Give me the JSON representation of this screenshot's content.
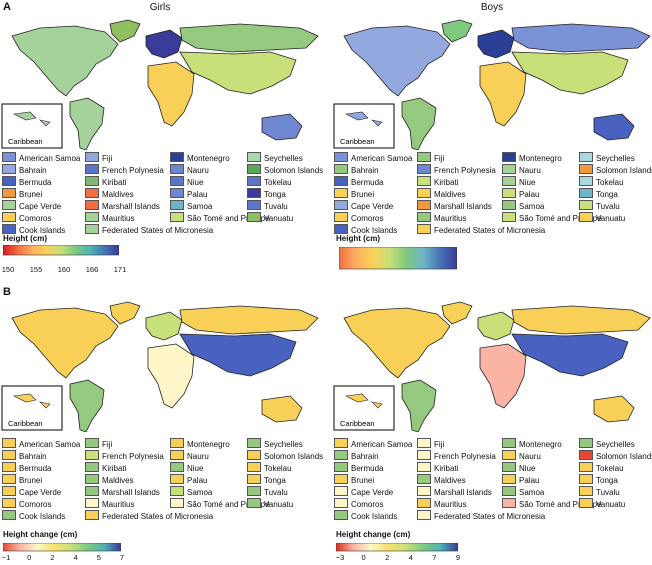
{
  "panels": {
    "A": {
      "letter": "A",
      "left_title": "Girls",
      "right_title": "Boys"
    },
    "B": {
      "letter": "B"
    }
  },
  "inset_label": "Caribbean",
  "colorbars": {
    "girls_height": {
      "title": "Height (cm)",
      "ticks": [
        "150",
        "155",
        "160",
        "166",
        "171"
      ],
      "colors": [
        "#d7191c",
        "#f46d43",
        "#fdae61",
        "#f9d057",
        "#c7e07a",
        "#7fc97f",
        "#4eb3b3",
        "#4575b4",
        "#3a3a9a"
      ]
    },
    "boys_height": {
      "title": "Height (cm)",
      "colors": [
        "#f46d43",
        "#fdae61",
        "#f9d057",
        "#c7e07a",
        "#7fc97f",
        "#6fb4c8",
        "#4575b4",
        "#3a3a9a"
      ]
    },
    "girls_change": {
      "title": "Height change (cm)",
      "ticks": [
        "−1",
        "0",
        "2",
        "4",
        "5",
        "7"
      ],
      "colors": [
        "#e34a33",
        "#fbb4a4",
        "#fef6c8",
        "#f7e36b",
        "#c7e07a",
        "#7fc97f",
        "#4eb3b3",
        "#3a3a9a"
      ]
    },
    "boys_change": {
      "title": "Height change (cm)",
      "ticks": [
        "−3",
        "0",
        "2",
        "4",
        "7",
        "9"
      ],
      "colors": [
        "#d7301f",
        "#fbb4a4",
        "#fef6c8",
        "#f7e36b",
        "#c7e07a",
        "#7fc97f",
        "#4eb3b3",
        "#3a3a9a"
      ]
    }
  },
  "legends": {
    "A_girls": [
      {
        "name": "American Samoa",
        "color": "#7b93d6"
      },
      {
        "name": "Fiji",
        "color": "#94a8e0"
      },
      {
        "name": "Montenegro",
        "color": "#2b3f97"
      },
      {
        "name": "Seychelles",
        "color": "#a9d8b0"
      },
      {
        "name": "Bahrain",
        "color": "#94a8e0"
      },
      {
        "name": "French Polynesia",
        "color": "#5d74c7"
      },
      {
        "name": "Nauru",
        "color": "#6f86d0"
      },
      {
        "name": "Solomon Islands",
        "color": "#5ba85a"
      },
      {
        "name": "Bermuda",
        "color": "#4a62bf"
      },
      {
        "name": "Kiribati",
        "color": "#7fb873"
      },
      {
        "name": "Niue",
        "color": "#5d74c7"
      },
      {
        "name": "Tokelau",
        "color": "#5d74c7"
      },
      {
        "name": "Brunei",
        "color": "#f09a3e"
      },
      {
        "name": "Maldives",
        "color": "#f46d43"
      },
      {
        "name": "Palau",
        "color": "#6f86d0"
      },
      {
        "name": "Tonga",
        "color": "#3a3a9a"
      },
      {
        "name": "Cape Verde",
        "color": "#a5d29a"
      },
      {
        "name": "Marshall Islands",
        "color": "#f46d43"
      },
      {
        "name": "Samoa",
        "color": "#6fb4c8"
      },
      {
        "name": "Tuvalu",
        "color": "#5d74c7"
      },
      {
        "name": "Comoros",
        "color": "#f9d057"
      },
      {
        "name": "Mauritius",
        "color": "#a5d29a"
      },
      {
        "name": "São Tomé and Principe",
        "color": "#c7e07a"
      },
      {
        "name": "Vanuatu",
        "color": "#8fbf5f"
      },
      {
        "name": "Cook Islands",
        "color": "#4a62bf"
      },
      {
        "name": "Federated States of Micronesia",
        "color": "#a5d29a"
      }
    ],
    "A_boys": [
      {
        "name": "American Samoa",
        "color": "#7b93d6"
      },
      {
        "name": "Fiji",
        "color": "#94c97f"
      },
      {
        "name": "Montenegro",
        "color": "#2b3f97"
      },
      {
        "name": "Seychelles",
        "color": "#a9d8e0"
      },
      {
        "name": "Bahrain",
        "color": "#94c97f"
      },
      {
        "name": "French Polynesia",
        "color": "#6f86d0"
      },
      {
        "name": "Nauru",
        "color": "#a5d29a"
      },
      {
        "name": "Solomon Islands",
        "color": "#f09a3e"
      },
      {
        "name": "Bermuda",
        "color": "#4a62bf"
      },
      {
        "name": "Kiribati",
        "color": "#c7e07a"
      },
      {
        "name": "Niue",
        "color": "#a5d29a"
      },
      {
        "name": "Tokelau",
        "color": "#a9d8e0"
      },
      {
        "name": "Brunei",
        "color": "#f9d057"
      },
      {
        "name": "Maldives",
        "color": "#f9d057"
      },
      {
        "name": "Palau",
        "color": "#c7e07a"
      },
      {
        "name": "Tonga",
        "color": "#6fb4c8"
      },
      {
        "name": "Cape Verde",
        "color": "#94a8e0"
      },
      {
        "name": "Marshall Islands",
        "color": "#f09a3e"
      },
      {
        "name": "Samoa",
        "color": "#94c97f"
      },
      {
        "name": "Tuvalu",
        "color": "#c7e07a"
      },
      {
        "name": "Comoros",
        "color": "#f9d057"
      },
      {
        "name": "Mauritius",
        "color": "#94c97f"
      },
      {
        "name": "São Tomé and Principe",
        "color": "#c7e07a"
      },
      {
        "name": "Vanuatu",
        "color": "#f9d057"
      },
      {
        "name": "Cook Islands",
        "color": "#4a62bf"
      },
      {
        "name": "Federated States of Micronesia",
        "color": "#f9d057"
      }
    ],
    "B_girls": [
      {
        "name": "American Samoa",
        "color": "#f9d057"
      },
      {
        "name": "Fiji",
        "color": "#94c97f"
      },
      {
        "name": "Montenegro",
        "color": "#f9d057"
      },
      {
        "name": "Seychelles",
        "color": "#94c97f"
      },
      {
        "name": "Bahrain",
        "color": "#f9d057"
      },
      {
        "name": "French Polynesia",
        "color": "#c7e07a"
      },
      {
        "name": "Nauru",
        "color": "#f9d057"
      },
      {
        "name": "Solomon Islands",
        "color": "#f9d057"
      },
      {
        "name": "Bermuda",
        "color": "#f9d057"
      },
      {
        "name": "Kiribati",
        "color": "#94c97f"
      },
      {
        "name": "Niue",
        "color": "#94c97f"
      },
      {
        "name": "Tokelau",
        "color": "#f9d057"
      },
      {
        "name": "Brunei",
        "color": "#f9d057"
      },
      {
        "name": "Maldives",
        "color": "#94c97f"
      },
      {
        "name": "Palau",
        "color": "#f9d057"
      },
      {
        "name": "Tonga",
        "color": "#f9d057"
      },
      {
        "name": "Cape Verde",
        "color": "#f9d057"
      },
      {
        "name": "Marshall Islands",
        "color": "#94c97f"
      },
      {
        "name": "Samoa",
        "color": "#c7e07a"
      },
      {
        "name": "Tuvalu",
        "color": "#94c97f"
      },
      {
        "name": "Comoros",
        "color": "#f9d057"
      },
      {
        "name": "Mauritius",
        "color": "#fef6c8"
      },
      {
        "name": "São Tomé and Principe",
        "color": "#fef6c8"
      },
      {
        "name": "Vanuatu",
        "color": "#94c97f"
      },
      {
        "name": "Cook Islands",
        "color": "#94c97f"
      },
      {
        "name": "Federated States of Micronesia",
        "color": "#f9d057"
      }
    ],
    "B_boys": [
      {
        "name": "American Samoa",
        "color": "#f9d057"
      },
      {
        "name": "Fiji",
        "color": "#fef6c8"
      },
      {
        "name": "Montenegro",
        "color": "#94c97f"
      },
      {
        "name": "Seychelles",
        "color": "#94c97f"
      },
      {
        "name": "Bahrain",
        "color": "#94c97f"
      },
      {
        "name": "French Polynesia",
        "color": "#fef6c8"
      },
      {
        "name": "Nauru",
        "color": "#f9d057"
      },
      {
        "name": "Solomon Islands",
        "color": "#e34a33"
      },
      {
        "name": "Bermuda",
        "color": "#94c97f"
      },
      {
        "name": "Kiribati",
        "color": "#fef6c8"
      },
      {
        "name": "Niue",
        "color": "#94c97f"
      },
      {
        "name": "Tokelau",
        "color": "#f9d057"
      },
      {
        "name": "Brunei",
        "color": "#f9d057"
      },
      {
        "name": "Maldives",
        "color": "#94c97f"
      },
      {
        "name": "Palau",
        "color": "#f9d057"
      },
      {
        "name": "Tonga",
        "color": "#f9d057"
      },
      {
        "name": "Cape Verde",
        "color": "#fef6c8"
      },
      {
        "name": "Marshall Islands",
        "color": "#fef6c8"
      },
      {
        "name": "Samoa",
        "color": "#94c97f"
      },
      {
        "name": "Tuvalu",
        "color": "#f9d057"
      },
      {
        "name": "Comoros",
        "color": "#fef6c8"
      },
      {
        "name": "Mauritius",
        "color": "#f9d057"
      },
      {
        "name": "São Tomé and Principe",
        "color": "#fbb4a4"
      },
      {
        "name": "Vanuatu",
        "color": "#f9d057"
      },
      {
        "name": "Cook Islands",
        "color": "#94c97f"
      },
      {
        "name": "Federated States of Micronesia",
        "color": "#fef6c8"
      }
    ]
  },
  "map_fills": {
    "A_girls": {
      "north_america": "#a5d29a",
      "greenland": "#8fbf5f",
      "south_america": "#a5d29a",
      "europe": "#3a3a9a",
      "russia": "#94c97f",
      "asia": "#c7e07a",
      "africa": "#f9d057",
      "australia": "#6f86d0"
    },
    "A_boys": {
      "north_america": "#94a8e0",
      "greenland": "#7fc97f",
      "south_america": "#94c97f",
      "europe": "#2b3f97",
      "russia": "#7b93d6",
      "asia": "#c7e07a",
      "africa": "#f9d057",
      "australia": "#4a62bf"
    },
    "B_girls": {
      "north_america": "#f9d057",
      "greenland": "#f9d057",
      "south_america": "#94c97f",
      "europe": "#c7e07a",
      "russia": "#f9d057",
      "asia": "#4a62bf",
      "africa": "#fef6c8",
      "australia": "#f9d057"
    },
    "B_boys": {
      "north_america": "#f9d057",
      "greenland": "#f9d057",
      "south_america": "#94c97f",
      "europe": "#c7e07a",
      "russia": "#f9d057",
      "asia": "#4a62bf",
      "africa": "#fbb4a4",
      "australia": "#f9d057"
    }
  }
}
